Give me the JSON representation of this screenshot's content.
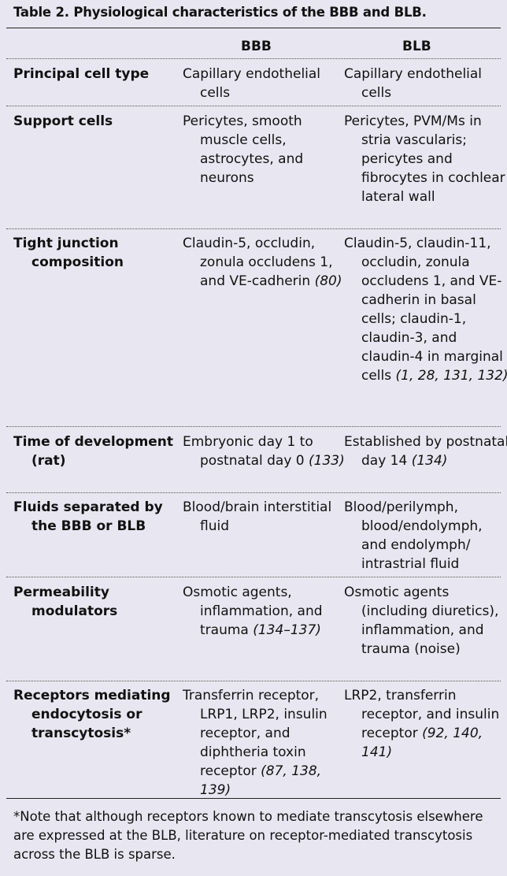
{
  "table": {
    "title": "Table 2. Physiological characteristics of the BBB and BLB.",
    "columns": [
      "BBB",
      "BLB"
    ],
    "rows": [
      {
        "label": "Principal cell type",
        "bbb": "Capillary endothelial cells",
        "blb": "Capillary endothelial cells"
      },
      {
        "label": "Support cells",
        "bbb": "Pericytes, smooth muscle cells, astrocytes, and neurons",
        "blb": "Pericytes, PVM/Ms in stria vascularis; pericytes and fibrocytes in cochlear lateral wall"
      },
      {
        "label": "Tight junction composition",
        "bbb": "Claudin-5, occludin, zonula occludens 1, and VE-cadherin",
        "bbb_ref": "(80)",
        "blb": "Claudin-5, claudin-11, occludin, zonula occludens 1, and VE-cadherin in basal cells; claudin-1, claudin-3, and claudin-4 in marginal cells",
        "blb_ref": "(1, 28, 131, 132)"
      },
      {
        "label": "Time of development (rat)",
        "bbb": "Embryonic day 1 to postnatal day 0",
        "bbb_ref": "(133)",
        "blb": "Established by postnatal day 14",
        "blb_ref": "(134)"
      },
      {
        "label": "Fluids separated by the BBB or BLB",
        "bbb": "Blood/brain interstitial fluid",
        "blb": "Blood/perilymph, blood/endolymph, and endolymph/ intrastrial fluid"
      },
      {
        "label": "Permeability modulators",
        "bbb": "Osmotic agents, inflammation, and trauma",
        "bbb_ref": "(134–137)",
        "blb": "Osmotic agents (including diuretics), inflammation, and trauma (noise)"
      },
      {
        "label": "Receptors mediating endocytosis or transcytosis*",
        "bbb": "Transferrin receptor, LRP1, LRP2, insulin receptor, and diphtheria toxin receptor",
        "bbb_ref": "(87, 138, 139)",
        "blb": "LRP2, transferrin receptor, and insulin receptor",
        "blb_ref": "(92, 140, 141)"
      }
    ],
    "footnote": "*Note that although receptors known to mediate transcytosis elsewhere are expressed at the BLB, literature on receptor-mediated transcytosis across the BLB is sparse."
  },
  "colors": {
    "background": "#e8e6f0",
    "text": "#111111"
  }
}
